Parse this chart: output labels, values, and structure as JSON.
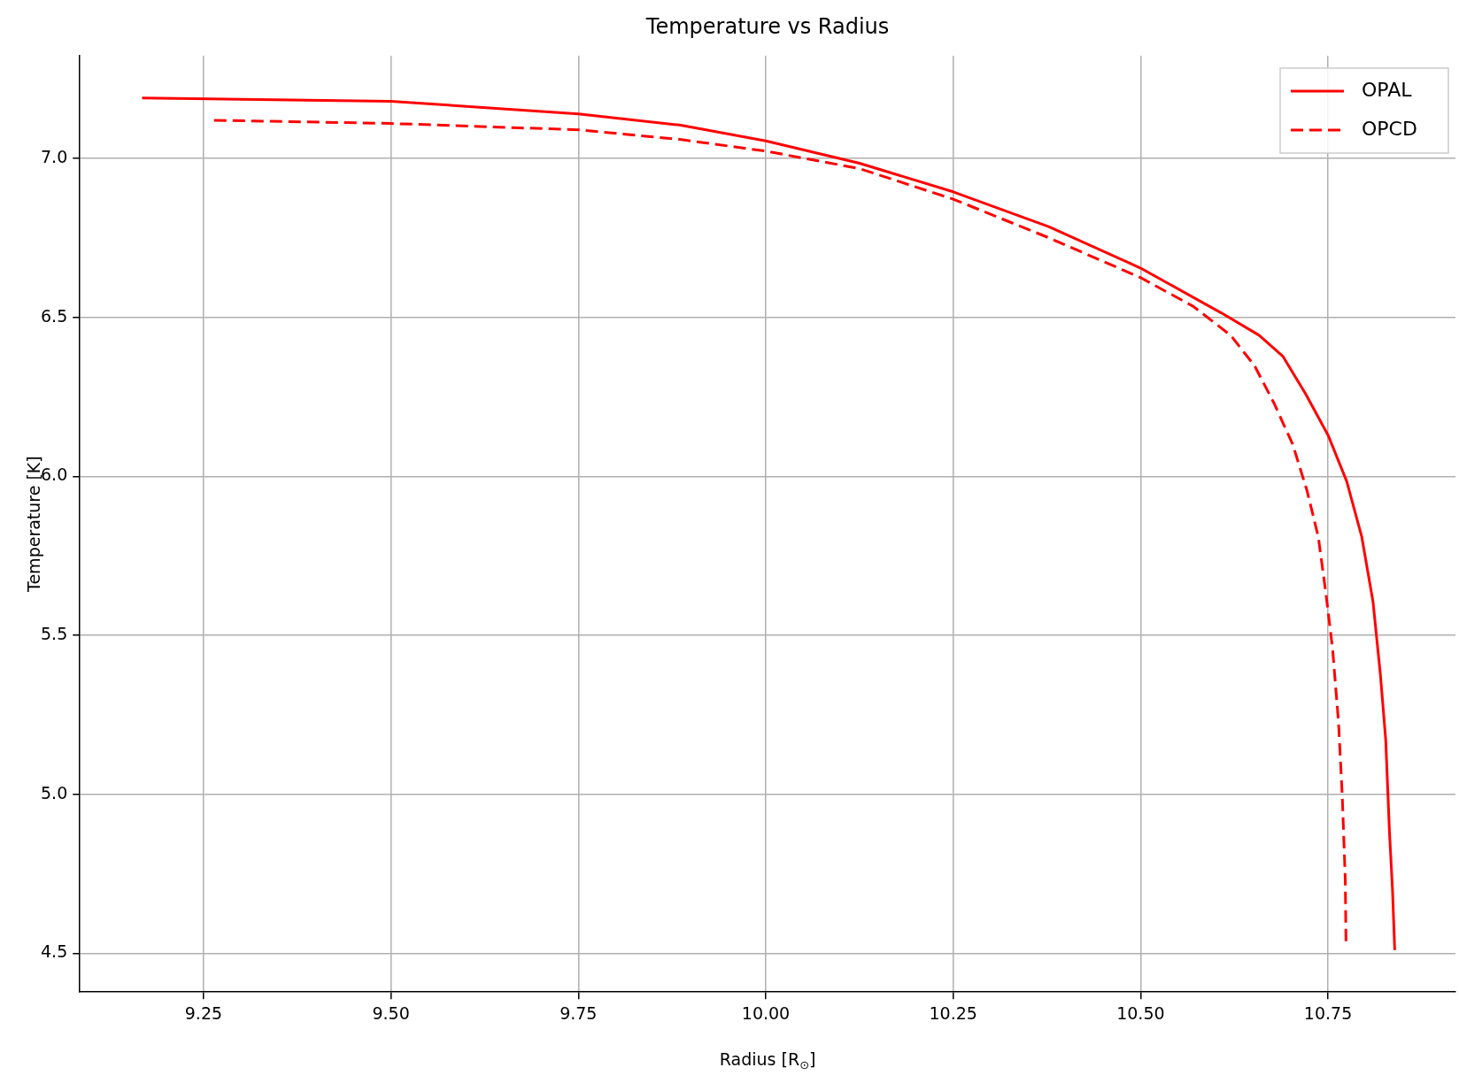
{
  "chart_data": {
    "type": "line",
    "title": "Temperature vs Radius",
    "xlabel": "Radius [R$_{⊙}$]",
    "ylabel": "Temperature [K]",
    "xlim": [
      9.085,
      10.92
    ],
    "ylim": [
      4.378,
      7.323
    ],
    "xticks": [
      {
        "value": 9.25,
        "label": "9.25"
      },
      {
        "value": 9.5,
        "label": "9.50"
      },
      {
        "value": 9.75,
        "label": "9.75"
      },
      {
        "value": 10,
        "label": "10.00"
      },
      {
        "value": 10.25,
        "label": "10.25"
      },
      {
        "value": 10.5,
        "label": "10.50"
      },
      {
        "value": 10.75,
        "label": "10.75"
      }
    ],
    "yticks": [
      {
        "value": 4.5,
        "label": "4.5"
      },
      {
        "value": 5,
        "label": "5.0"
      },
      {
        "value": 5.5,
        "label": "5.5"
      },
      {
        "value": 6,
        "label": "6.0"
      },
      {
        "value": 6.5,
        "label": "6.5"
      },
      {
        "value": 7,
        "label": "7.0"
      }
    ],
    "grid": true,
    "legend": "top right",
    "marker": "none",
    "series": [
      {
        "name": "OPAL",
        "color": "#ff0000",
        "line_style": "solid",
        "x": [
          9.168,
          9.5,
          9.75,
          9.885,
          10.0,
          10.125,
          10.25,
          10.378,
          10.5,
          10.607,
          10.658,
          10.69,
          10.72,
          10.75,
          10.775,
          10.795,
          10.81,
          10.82,
          10.827,
          10.832,
          10.836,
          10.839
        ],
        "values": [
          7.19,
          7.18,
          7.14,
          7.105,
          7.055,
          6.985,
          6.895,
          6.785,
          6.655,
          6.515,
          6.444,
          6.377,
          6.26,
          6.13,
          5.984,
          5.81,
          5.606,
          5.373,
          5.17,
          4.88,
          4.7,
          4.51
        ]
      },
      {
        "name": "OPCD",
        "color": "#ff0000",
        "line_style": "dashed",
        "x": [
          9.264,
          9.5,
          9.75,
          9.885,
          10.0,
          10.125,
          10.25,
          10.378,
          10.5,
          10.57,
          10.62,
          10.652,
          10.678,
          10.703,
          10.722,
          10.737,
          10.747,
          10.756,
          10.764,
          10.769,
          10.773,
          10.774
        ],
        "values": [
          7.12,
          7.11,
          7.09,
          7.06,
          7.023,
          6.968,
          6.872,
          6.75,
          6.625,
          6.535,
          6.444,
          6.348,
          6.23,
          6.1,
          5.955,
          5.81,
          5.635,
          5.46,
          5.227,
          4.995,
          4.733,
          4.53
        ]
      }
    ]
  }
}
